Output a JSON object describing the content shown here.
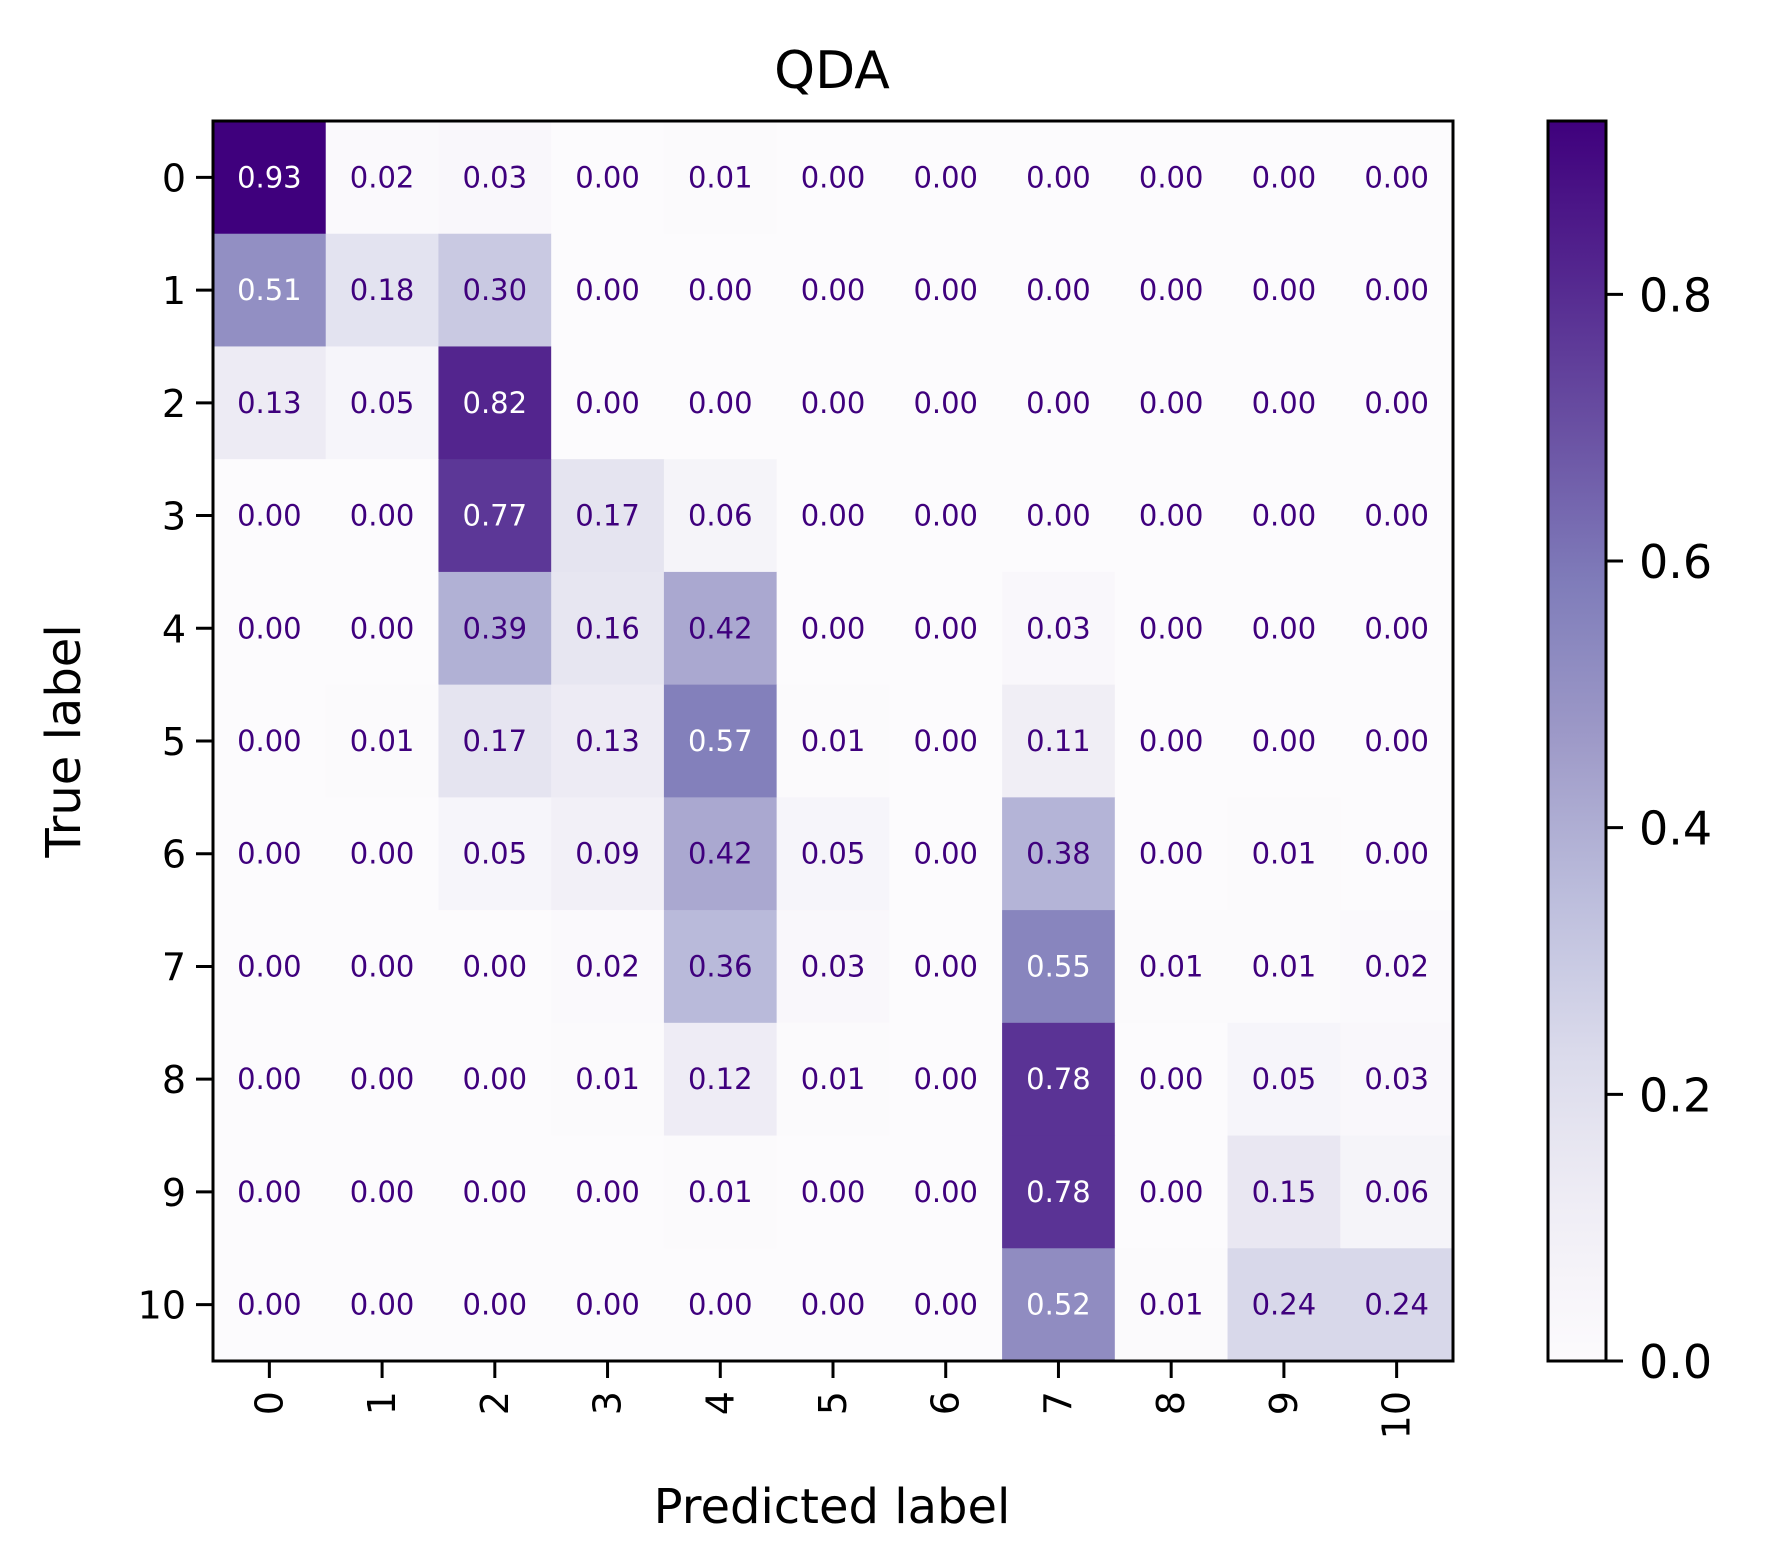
{
  "chart_data": {
    "type": "heatmap",
    "title": "QDA",
    "xlabel": "Predicted label",
    "ylabel": "True label",
    "x_categories": [
      "0",
      "1",
      "2",
      "3",
      "4",
      "5",
      "6",
      "7",
      "8",
      "9",
      "10"
    ],
    "y_categories": [
      "0",
      "1",
      "2",
      "3",
      "4",
      "5",
      "6",
      "7",
      "8",
      "9",
      "10"
    ],
    "values": [
      [
        0.93,
        0.02,
        0.03,
        0.0,
        0.01,
        0.0,
        0.0,
        0.0,
        0.0,
        0.0,
        0.0
      ],
      [
        0.51,
        0.18,
        0.3,
        0.0,
        0.0,
        0.0,
        0.0,
        0.0,
        0.0,
        0.0,
        0.0
      ],
      [
        0.13,
        0.05,
        0.82,
        0.0,
        0.0,
        0.0,
        0.0,
        0.0,
        0.0,
        0.0,
        0.0
      ],
      [
        0.0,
        0.0,
        0.77,
        0.17,
        0.06,
        0.0,
        0.0,
        0.0,
        0.0,
        0.0,
        0.0
      ],
      [
        0.0,
        0.0,
        0.39,
        0.16,
        0.42,
        0.0,
        0.0,
        0.03,
        0.0,
        0.0,
        0.0
      ],
      [
        0.0,
        0.01,
        0.17,
        0.13,
        0.57,
        0.01,
        0.0,
        0.11,
        0.0,
        0.0,
        0.0
      ],
      [
        0.0,
        0.0,
        0.05,
        0.09,
        0.42,
        0.05,
        0.0,
        0.38,
        0.0,
        0.01,
        0.0
      ],
      [
        0.0,
        0.0,
        0.0,
        0.02,
        0.36,
        0.03,
        0.0,
        0.55,
        0.01,
        0.01,
        0.02
      ],
      [
        0.0,
        0.0,
        0.0,
        0.01,
        0.12,
        0.01,
        0.0,
        0.78,
        0.0,
        0.05,
        0.03
      ],
      [
        0.0,
        0.0,
        0.0,
        0.0,
        0.01,
        0.0,
        0.0,
        0.78,
        0.0,
        0.15,
        0.06
      ],
      [
        0.0,
        0.0,
        0.0,
        0.0,
        0.0,
        0.0,
        0.0,
        0.52,
        0.01,
        0.24,
        0.24
      ]
    ],
    "colormap": "Purples",
    "color_range": [
      0.0,
      0.93
    ],
    "colorbar_ticks": [
      0.0,
      0.2,
      0.4,
      0.6,
      0.8
    ],
    "colorbar_tick_labels": [
      "0.0",
      "0.2",
      "0.4",
      "0.6",
      "0.8"
    ],
    "x_tick_rotation": "vertical",
    "legend": "colorbar-right",
    "grid": false
  }
}
